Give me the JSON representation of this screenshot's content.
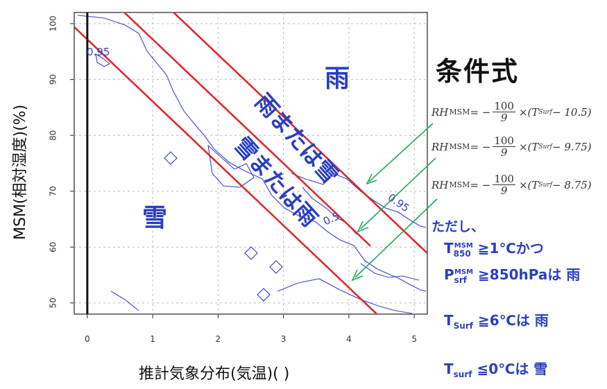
{
  "chart_data": {
    "type": "line",
    "xlabel": "推計気象分布(気温)(  )",
    "ylabel": "MSM(相対湿度)(%)",
    "xlim": [
      -0.2,
      5.2
    ],
    "ylim": [
      48,
      102
    ],
    "x_ticks": [
      "0",
      "1",
      "2",
      "3",
      "4",
      "5"
    ],
    "y_ticks": [
      "50",
      "60",
      "70",
      "80",
      "90",
      "100"
    ],
    "grid": true,
    "series": [
      {
        "name": "RH = -100/9 × (T - 10.5)",
        "x": [
          0.6,
          5.2
        ],
        "y": [
          110,
          58.9
        ],
        "color": "#e0282c"
      },
      {
        "name": "RH = -100/9 × (T - 9.75)",
        "x": [
          0,
          4.33
        ],
        "y": [
          108.3,
          60.2
        ],
        "color": "#e0282c"
      },
      {
        "name": "RH = -100/9 × (T - 8.75)",
        "x": [
          -0.2,
          4.5
        ],
        "y": [
          99.4,
          47.2
        ],
        "color": "#e0282c"
      }
    ],
    "vertical_line_x": 0,
    "contour_labels": [
      "0.5",
      "0.95",
      "0.95"
    ],
    "regions": [
      "雨",
      "雨または雪",
      "雪または雨",
      "雪"
    ]
  },
  "panel": {
    "title": "条件式",
    "formulas": [
      {
        "lhs": "RH",
        "sup": "MSM",
        "eq": "= −",
        "num": "100",
        "den": "9",
        "rest": "×(T",
        "sub": "Surf",
        "tail": " − 10.5)"
      },
      {
        "lhs": "RH",
        "sup": "MSM",
        "eq": "= −",
        "num": "100",
        "den": "9",
        "rest": "×(T",
        "sub": "Surf",
        "tail": " − 9.75)"
      },
      {
        "lhs": "RH",
        "sup": "MSM",
        "eq": "= −",
        "num": "100",
        "den": "9",
        "rest": "×(T",
        "sub": "Surf",
        "tail": " − 8.75)"
      }
    ],
    "note_intro": "ただし、",
    "cond1": {
      "var": "T",
      "sub": "850",
      "sup": "MSM",
      "text": "≧1℃かつ"
    },
    "cond2": {
      "var": "P",
      "sub": "srf",
      "sup": "MSM",
      "text": "≧850hPaは 雨"
    },
    "cond3": {
      "var": "T",
      "sub": "Surf",
      "text": "≧6℃は 雨"
    },
    "cond4": {
      "var": "T",
      "sub": "surf",
      "text": "≦0℃は 雪"
    }
  },
  "colors": {
    "red_line": "#e0282c",
    "contour": "#3a44c8",
    "arrow": "#22aa55",
    "note": "#2a3fc0"
  }
}
